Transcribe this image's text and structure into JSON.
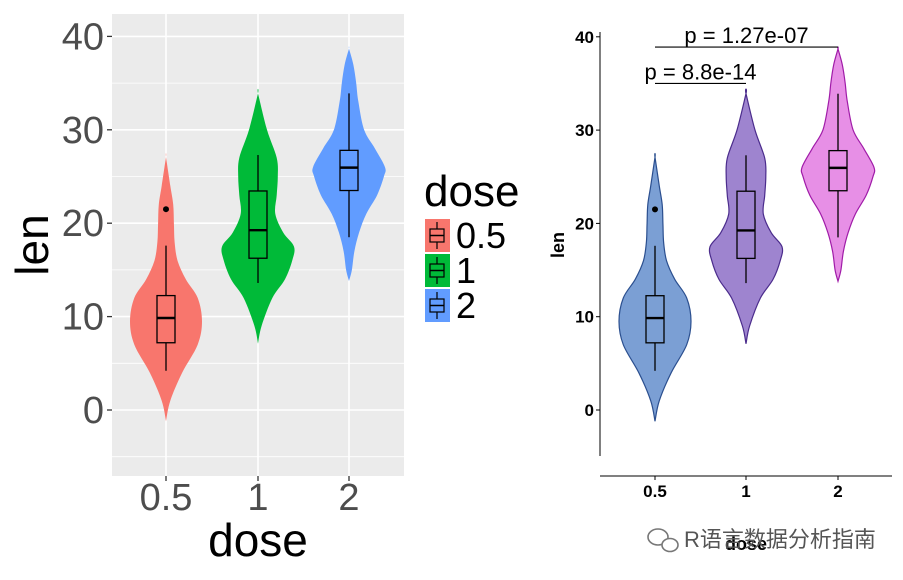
{
  "chart_data": [
    {
      "type": "violin",
      "panel": "left",
      "title": "",
      "xlabel": "dose",
      "ylabel": "len",
      "categories": [
        "0.5",
        "1",
        "2"
      ],
      "ylim": [
        -7,
        42
      ],
      "yticks": [
        0,
        10,
        20,
        30,
        40
      ],
      "yticklabels": [
        "0",
        "10",
        "20",
        "30",
        "40"
      ],
      "grid": true,
      "legend": {
        "title": "dose",
        "position": "right",
        "entries": [
          "0.5",
          "1",
          "2"
        ]
      },
      "fill_colors": [
        "#F8766D",
        "#00BA38",
        "#619CFF"
      ],
      "violin_range": [
        [
          -1.2,
          27.1
        ],
        [
          7.1,
          33.9
        ],
        [
          13.8,
          38.7
        ]
      ],
      "box": [
        {
          "min": 4.2,
          "q1": 7.2,
          "median": 9.85,
          "q3": 12.25,
          "max": 17.6,
          "outliers": [
            21.5
          ]
        },
        {
          "min": 13.6,
          "q1": 16.25,
          "median": 19.25,
          "q3": 23.45,
          "max": 27.3,
          "outliers": []
        },
        {
          "min": 18.5,
          "q1": 23.5,
          "median": 25.95,
          "q3": 27.8,
          "max": 33.9,
          "outliers": []
        }
      ]
    },
    {
      "type": "violin",
      "panel": "right",
      "title": "",
      "xlabel": "dose",
      "ylabel": "len",
      "categories": [
        "0.5",
        "1",
        "2"
      ],
      "ylim": [
        -5,
        41
      ],
      "yticks": [
        0,
        10,
        20,
        30,
        40
      ],
      "yticklabels": [
        "0",
        "10",
        "20",
        "30",
        "40"
      ],
      "grid": false,
      "fill_colors": [
        "#7B9FD4",
        "#9E84CF",
        "#E78FE6"
      ],
      "stroke_colors": [
        "#2B4F8F",
        "#4B2C8C",
        "#A01CA8"
      ],
      "violin_range": [
        [
          -1.2,
          27.1
        ],
        [
          7.1,
          33.9
        ],
        [
          13.8,
          38.7
        ]
      ],
      "box": [
        {
          "min": 4.2,
          "q1": 7.2,
          "median": 9.85,
          "q3": 12.25,
          "max": 17.6,
          "outliers": [
            21.5
          ]
        },
        {
          "min": 13.6,
          "q1": 16.25,
          "median": 19.25,
          "q3": 23.45,
          "max": 27.3,
          "outliers": []
        },
        {
          "min": 18.5,
          "q1": 23.5,
          "median": 25.95,
          "q3": 27.8,
          "max": 33.9,
          "outliers": []
        }
      ],
      "annotations": [
        {
          "text": "p = 8.8e-14",
          "from": "0.5",
          "to": "1",
          "y": 35.0
        },
        {
          "text": "p = 1.27e-07",
          "from": "0.5",
          "to": "2",
          "y": 38.9
        }
      ]
    }
  ],
  "watermark": "R语言数据分析指南"
}
